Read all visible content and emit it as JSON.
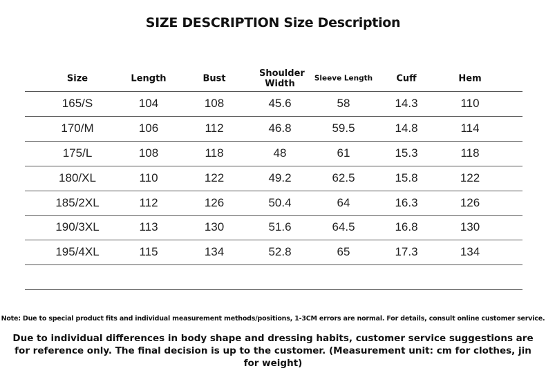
{
  "header": {
    "title": "SIZE DESCRIPTION Size Description"
  },
  "table": {
    "columns": [
      "Size",
      "Length",
      "Bust",
      "Shoulder Width",
      "Sleeve Length",
      "Cuff",
      "Hem"
    ],
    "rows": [
      [
        "165/S",
        104,
        108,
        45.6,
        58,
        14.3,
        110
      ],
      [
        "170/M",
        106,
        112,
        46.8,
        59.5,
        14.8,
        114
      ],
      [
        "175/L",
        108,
        118,
        48,
        61,
        15.3,
        118
      ],
      [
        "180/XL",
        110,
        122,
        49.2,
        62.5,
        15.8,
        122
      ],
      [
        "185/2XL",
        112,
        126,
        50.4,
        64,
        16.3,
        126
      ],
      [
        "190/3XL",
        113,
        130,
        51.6,
        64.5,
        16.8,
        130
      ],
      [
        "195/4XL",
        115,
        134,
        52.8,
        65,
        17.3,
        134
      ]
    ]
  },
  "footer": {
    "note": "Note: Due to special product fits and individual measurement methods/positions, 1-3CM errors are normal. For details, consult online customer service.",
    "disclaimer": "Due to individual differences in body shape and dressing habits, customer service suggestions are for reference only. The final decision is up to the customer. (Measurement unit: cm for clothes, jin for weight)"
  }
}
